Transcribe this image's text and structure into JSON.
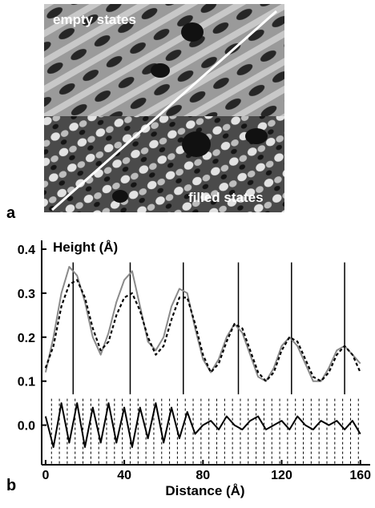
{
  "chart_data": {
    "type": "line",
    "panel_a": {
      "label": "a",
      "top_text": "empty states",
      "bottom_text": "filled states"
    },
    "panel_label": "b",
    "y_label": "Height (Å)",
    "x_label": "Distance (Å)",
    "xlim": [
      -2,
      165
    ],
    "ylim": [
      -0.09,
      0.42
    ],
    "xticks": [
      0,
      40,
      80,
      120,
      160
    ],
    "yticks": [
      {
        "value": 0,
        "label": "0.0"
      },
      0.1,
      0.2,
      0.3,
      0.4
    ],
    "x": [
      0,
      4,
      8,
      12,
      16,
      20,
      24,
      28,
      32,
      36,
      40,
      44,
      48,
      52,
      56,
      60,
      64,
      68,
      72,
      76,
      80,
      84,
      88,
      92,
      96,
      100,
      104,
      108,
      112,
      116,
      120,
      124,
      128,
      132,
      136,
      140,
      144,
      148,
      152,
      156,
      160
    ],
    "series": [
      {
        "color": "#8a8a8a",
        "style": "solid",
        "values": [
          0.12,
          0.2,
          0.3,
          0.36,
          0.34,
          0.28,
          0.2,
          0.16,
          0.21,
          0.28,
          0.33,
          0.35,
          0.27,
          0.19,
          0.17,
          0.2,
          0.27,
          0.31,
          0.3,
          0.22,
          0.15,
          0.12,
          0.15,
          0.2,
          0.23,
          0.21,
          0.16,
          0.11,
          0.1,
          0.13,
          0.18,
          0.2,
          0.18,
          0.14,
          0.1,
          0.1,
          0.13,
          0.17,
          0.18,
          0.16,
          0.14
        ]
      },
      {
        "color": "#000000",
        "style": "dashed",
        "values": [
          0.13,
          0.18,
          0.27,
          0.32,
          0.33,
          0.29,
          0.22,
          0.17,
          0.19,
          0.25,
          0.29,
          0.3,
          0.26,
          0.2,
          0.16,
          0.18,
          0.24,
          0.29,
          0.29,
          0.23,
          0.16,
          0.12,
          0.14,
          0.19,
          0.23,
          0.22,
          0.17,
          0.12,
          0.1,
          0.12,
          0.17,
          0.2,
          0.19,
          0.15,
          0.11,
          0.1,
          0.12,
          0.16,
          0.18,
          0.16,
          0.12
        ]
      },
      {
        "color": "#000000",
        "style": "solid",
        "values": [
          0.02,
          -0.05,
          0.05,
          -0.04,
          0.05,
          -0.05,
          0.04,
          -0.04,
          0.05,
          -0.04,
          0.04,
          -0.05,
          0.04,
          -0.03,
          0.05,
          -0.04,
          0.04,
          -0.03,
          0.03,
          -0.02,
          0.0,
          0.01,
          -0.01,
          0.02,
          0.0,
          -0.01,
          0.01,
          0.02,
          -0.01,
          0.0,
          0.01,
          -0.01,
          0.02,
          0.0,
          -0.01,
          0.01,
          0.0,
          0.01,
          -0.01,
          0.01,
          -0.02
        ]
      }
    ],
    "peak_lines": [
      14,
      43,
      70,
      98,
      125,
      152
    ],
    "site_lines": [
      3,
      7,
      11,
      15,
      19,
      23,
      27,
      31,
      35,
      39,
      43,
      47,
      51,
      55,
      59,
      63,
      67,
      71,
      75,
      79,
      83,
      87,
      91,
      95,
      99,
      103,
      107,
      111,
      115,
      119,
      123,
      127,
      131,
      135,
      139,
      143,
      147,
      151,
      155,
      159
    ]
  }
}
